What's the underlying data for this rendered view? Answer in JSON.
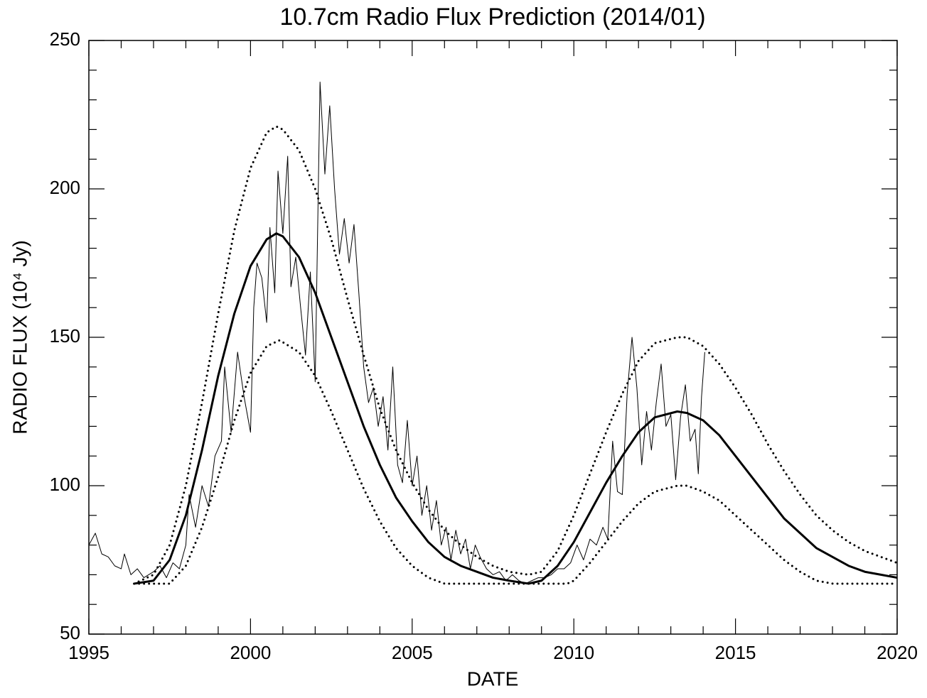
{
  "chart_data": {
    "type": "line",
    "title": "10.7cm Radio Flux Prediction (2014/01)",
    "x_label": "DATE",
    "y_label": "RADIO FLUX (10⁴ Jy)",
    "xlim": [
      1995,
      2020
    ],
    "ylim": [
      50,
      250
    ],
    "xticks": [
      1995,
      2000,
      2005,
      2010,
      2015,
      2020
    ],
    "yticks": [
      50,
      100,
      150,
      200,
      250
    ],
    "xminorticks": [
      1996,
      1997,
      1998,
      1999,
      2001,
      2002,
      2003,
      2004,
      2006,
      2007,
      2008,
      2009,
      2011,
      2012,
      2013,
      2014,
      2016,
      2017,
      2018,
      2019
    ],
    "yminorticks": [
      60,
      70,
      80,
      90,
      110,
      120,
      130,
      140,
      160,
      170,
      180,
      190,
      210,
      220,
      230,
      240
    ],
    "series": [
      {
        "color": "#000000",
        "width": 1,
        "style": "solid",
        "x": [
          1995.0,
          1995.2,
          1995.4,
          1995.6,
          1995.8,
          1996.0,
          1996.1,
          1996.3,
          1996.5,
          1996.7,
          1997.0,
          1997.2,
          1997.4,
          1997.6,
          1997.8,
          1998.0,
          1998.1,
          1998.3,
          1998.5,
          1998.7,
          1998.9,
          1999.1,
          1999.2,
          1999.4,
          1999.6,
          1999.8,
          2000.0,
          2000.1,
          2000.2,
          2000.35,
          2000.5,
          2000.6,
          2000.75,
          2000.85,
          2001.0,
          2001.15,
          2001.25,
          2001.4,
          2001.55,
          2001.7,
          2001.85,
          2002.0,
          2002.15,
          2002.3,
          2002.45,
          2002.6,
          2002.75,
          2002.9,
          2003.05,
          2003.2,
          2003.35,
          2003.5,
          2003.65,
          2003.8,
          2003.95,
          2004.1,
          2004.25,
          2004.4,
          2004.55,
          2004.7,
          2004.85,
          2005.0,
          2005.15,
          2005.3,
          2005.45,
          2005.6,
          2005.75,
          2005.9,
          2006.05,
          2006.2,
          2006.35,
          2006.5,
          2006.65,
          2006.8,
          2006.95,
          2007.1,
          2007.3,
          2007.5,
          2007.7,
          2007.9,
          2008.1,
          2008.3,
          2008.5,
          2008.7,
          2008.9,
          2009.1,
          2009.3,
          2009.5,
          2009.7,
          2009.9,
          2010.1,
          2010.3,
          2010.5,
          2010.7,
          2010.9,
          2011.05,
          2011.2,
          2011.35,
          2011.5,
          2011.65,
          2011.8,
          2011.95,
          2012.1,
          2012.25,
          2012.4,
          2012.55,
          2012.7,
          2012.85,
          2013.0,
          2013.15,
          2013.3,
          2013.45,
          2013.6,
          2013.75,
          2013.85,
          2013.95,
          2014.05
        ],
        "values": [
          80,
          84,
          77,
          76,
          73,
          72,
          77,
          70,
          72,
          69,
          71,
          73,
          69,
          74,
          72,
          80,
          97,
          86,
          100,
          93,
          110,
          115,
          140,
          118,
          145,
          130,
          118,
          160,
          175,
          170,
          155,
          187,
          165,
          206,
          185,
          211,
          167,
          177,
          160,
          144,
          172,
          135,
          236,
          205,
          228,
          200,
          178,
          190,
          175,
          188,
          165,
          140,
          128,
          133,
          120,
          130,
          112,
          140,
          107,
          101,
          122,
          100,
          110,
          90,
          100,
          85,
          95,
          80,
          86,
          75,
          85,
          77,
          82,
          72,
          80,
          76,
          72,
          70,
          71,
          68,
          70,
          68,
          67,
          68,
          69,
          69,
          70,
          72,
          72,
          74,
          80,
          75,
          82,
          80,
          86,
          82,
          115,
          98,
          97,
          131,
          150,
          133,
          107,
          125,
          112,
          128,
          141,
          120,
          124,
          102,
          123,
          134,
          115,
          119,
          104,
          130,
          145
        ]
      },
      {
        "color": "#000000",
        "width": 3,
        "style": "solid",
        "x": [
          1996.4,
          1997.0,
          1997.5,
          1998.0,
          1998.5,
          1999.0,
          1999.5,
          2000.0,
          2000.5,
          2000.8,
          2001.0,
          2001.5,
          2002.0,
          2002.5,
          2003.0,
          2003.5,
          2004.0,
          2004.5,
          2005.0,
          2005.5,
          2006.0,
          2006.5,
          2007.0,
          2007.5,
          2008.0,
          2008.6,
          2009.0,
          2009.5,
          2010.0,
          2010.5,
          2011.0,
          2011.5,
          2012.0,
          2012.5,
          2013.2,
          2013.5,
          2014.0,
          2014.5,
          2015.0,
          2015.5,
          2016.0,
          2016.5,
          2017.0,
          2017.5,
          2018.0,
          2018.5,
          2019.0,
          2019.5,
          2020.0
        ],
        "values": [
          67,
          68,
          75,
          90,
          112,
          137,
          158,
          174,
          183,
          185,
          184,
          177,
          165,
          150,
          135,
          120,
          107,
          96,
          88,
          81,
          76,
          73,
          71,
          69,
          68,
          67,
          68,
          73,
          81,
          91,
          101,
          110,
          118,
          123,
          125,
          124.5,
          122,
          117,
          110,
          103,
          96,
          89,
          84,
          79,
          76,
          73,
          71,
          70,
          69
        ]
      },
      {
        "color": "#000000",
        "width": 3,
        "style": "dotted",
        "x": [
          1996.4,
          1997.0,
          1997.5,
          1998.0,
          1998.5,
          1999.0,
          1999.5,
          2000.0,
          2000.5,
          2000.8,
          2001.0,
          2001.5,
          2002.0,
          2002.5,
          2003.0,
          2003.5,
          2004.0,
          2004.5,
          2005.0,
          2005.5,
          2006.0,
          2006.5,
          2007.0,
          2007.5,
          2008.0,
          2008.6,
          2009.0,
          2009.5,
          2010.0,
          2010.5,
          2011.0,
          2011.5,
          2012.0,
          2012.5,
          2013.2,
          2013.5,
          2014.0,
          2014.5,
          2015.0,
          2015.5,
          2016.0,
          2016.5,
          2017.0,
          2017.5,
          2018.0,
          2018.5,
          2019.0,
          2019.5,
          2020.0
        ],
        "values": [
          67,
          70,
          80,
          100,
          128,
          158,
          186,
          207,
          219,
          221,
          220,
          213,
          200,
          183,
          163,
          144,
          126,
          112,
          101,
          92,
          85,
          80,
          76,
          73,
          71,
          70,
          71,
          78,
          90,
          104,
          118,
          131,
          142,
          148,
          150,
          150,
          147,
          141,
          133,
          124,
          114,
          105,
          97,
          90,
          85,
          81,
          78,
          76,
          74
        ]
      },
      {
        "color": "#000000",
        "width": 3,
        "style": "dotted",
        "x": [
          1996.4,
          1997.5,
          1998.0,
          1998.5,
          1999.0,
          1999.5,
          2000.0,
          2000.5,
          2000.9,
          2001.5,
          2002.0,
          2002.5,
          2003.0,
          2003.5,
          2004.0,
          2004.5,
          2005.0,
          2005.5,
          2006.0,
          2009.8,
          2010.0,
          2010.5,
          2011.0,
          2011.5,
          2012.0,
          2012.5,
          2013.2,
          2013.5,
          2014.0,
          2014.5,
          2015.0,
          2015.5,
          2016.0,
          2016.5,
          2017.0,
          2017.5,
          2018.0,
          2020.0
        ],
        "values": [
          67,
          67,
          73,
          86,
          103,
          122,
          138,
          147,
          149,
          145,
          137,
          125,
          112,
          99,
          88,
          79,
          73,
          69,
          67,
          67,
          68,
          74,
          81,
          88,
          94,
          98,
          100,
          100,
          98,
          95,
          90,
          85,
          80,
          75,
          71,
          68,
          67,
          67
        ]
      }
    ]
  }
}
